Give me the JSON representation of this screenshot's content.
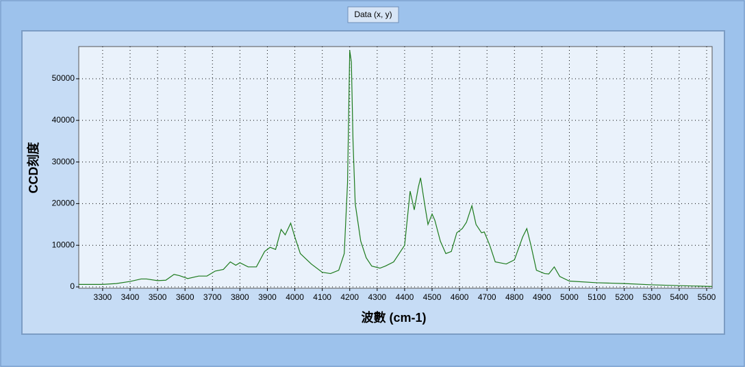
{
  "chart_data": {
    "type": "line",
    "xlabel": "波數 (cm-1)",
    "ylabel": "CCD刻度",
    "x": [
      3213,
      3300,
      3350,
      3400,
      3440,
      3460,
      3500,
      3530,
      3560,
      3580,
      3610,
      3650,
      3680,
      3710,
      3740,
      3765,
      3785,
      3800,
      3830,
      3860,
      3890,
      3910,
      3930,
      3950,
      3965,
      3985,
      4000,
      4020,
      4060,
      4100,
      4130,
      4160,
      4180,
      4192,
      4200,
      4206,
      4212,
      4220,
      4240,
      4260,
      4280,
      4310,
      4330,
      4360,
      4400,
      4420,
      4435,
      4450,
      4458,
      4475,
      4485,
      4500,
      4510,
      4530,
      4550,
      4570,
      4590,
      4610,
      4625,
      4645,
      4660,
      4680,
      4690,
      4710,
      4730,
      4770,
      4800,
      4830,
      4845,
      4860,
      4880,
      4910,
      4925,
      4945,
      4965,
      5000,
      5100,
      5200,
      5300,
      5400,
      5520
    ],
    "series": [
      {
        "name": "Data (x, y)",
        "color": "#1c7a1c",
        "values": [
          600,
          600,
          800,
          1300,
          1900,
          1900,
          1500,
          1600,
          3000,
          2700,
          2000,
          2600,
          2600,
          3800,
          4200,
          6000,
          5200,
          5800,
          4800,
          4800,
          8500,
          9500,
          9000,
          13800,
          12500,
          15300,
          12000,
          8000,
          5500,
          3500,
          3200,
          4000,
          8000,
          25000,
          56800,
          54000,
          35000,
          20000,
          11000,
          7000,
          5000,
          4500,
          5000,
          6000,
          10000,
          23000,
          18500,
          24000,
          26200,
          19000,
          15000,
          17500,
          16000,
          11000,
          8000,
          8500,
          13000,
          14000,
          15500,
          19500,
          15000,
          13000,
          13200,
          10000,
          6000,
          5500,
          6500,
          12000,
          14000,
          10000,
          4000,
          3200,
          3100,
          4800,
          2500,
          1400,
          1000,
          800,
          500,
          300,
          100
        ]
      }
    ],
    "xlim": [
      3213,
      5520
    ],
    "ylim": [
      -330,
      57730
    ],
    "xticks": [
      3300,
      3400,
      3500,
      3600,
      3700,
      3800,
      3900,
      4000,
      4100,
      4200,
      4300,
      4400,
      4500,
      4600,
      4700,
      4800,
      4900,
      5000,
      5100,
      5200,
      5300,
      5400,
      5500
    ],
    "yticks": [
      0,
      10000,
      20000,
      30000,
      40000,
      50000
    ],
    "grid": true
  }
}
